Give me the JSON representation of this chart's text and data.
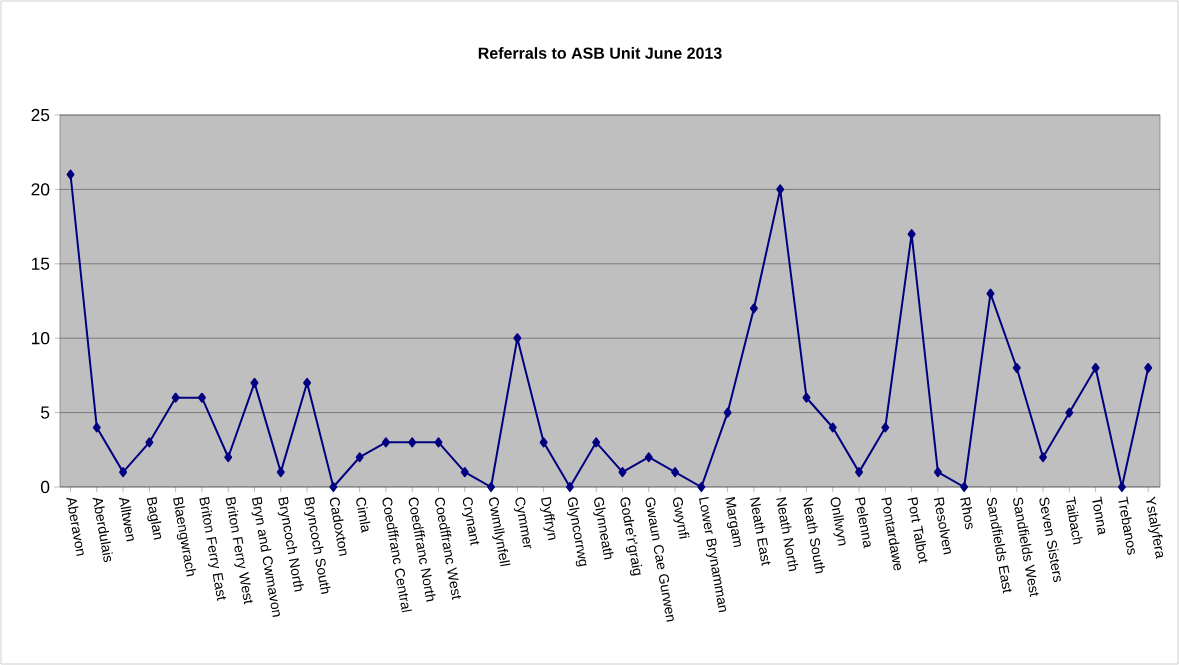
{
  "chart_data": {
    "type": "line",
    "title": "Referrals to ASB Unit June 2013",
    "categories": [
      "Aberavon",
      "Aberdulais",
      "Alltwen",
      "Baglan",
      "Blaengwrach",
      "Briton Ferry East",
      "Briton Ferry West",
      "Bryn and Cwmavon",
      "Bryncoch North",
      "Bryncoch South",
      "Cadoxton",
      "Cimla",
      "Coedffranc Central",
      "Coedffranc North",
      "Coedffranc West",
      "Crynant",
      "Cwmllynfell",
      "Cymmer",
      "Dyffryn",
      "Glyncorrwg",
      "Glynneath",
      "Godre'r'graig",
      "Gwaun Cae Gurwen",
      "Gwynfi",
      "Lower Brynamman",
      "Margam",
      "Neath East",
      "Neath North",
      "Neath South",
      "Onllwyn",
      "Pelenna",
      "Pontardawe",
      "Port Talbot",
      "Resolven",
      "Rhos",
      "Sandfields East",
      "Sandfields West",
      "Seven Sisters",
      "Taibach",
      "Tonna",
      "Trebanos",
      "Ystalyfera"
    ],
    "values": [
      21,
      4,
      1,
      3,
      6,
      6,
      2,
      7,
      1,
      7,
      0,
      2,
      3,
      3,
      3,
      1,
      0,
      10,
      3,
      0,
      3,
      1,
      2,
      1,
      0,
      5,
      12,
      20,
      6,
      4,
      1,
      4,
      17,
      1,
      0,
      13,
      8,
      2,
      5,
      8,
      0,
      8
    ],
    "color": "#000080",
    "marker": "diamond",
    "line_style": "solid",
    "ylim": [
      0,
      25
    ],
    "yticks": [
      0,
      5,
      10,
      15,
      20,
      25
    ],
    "grid": "y"
  }
}
